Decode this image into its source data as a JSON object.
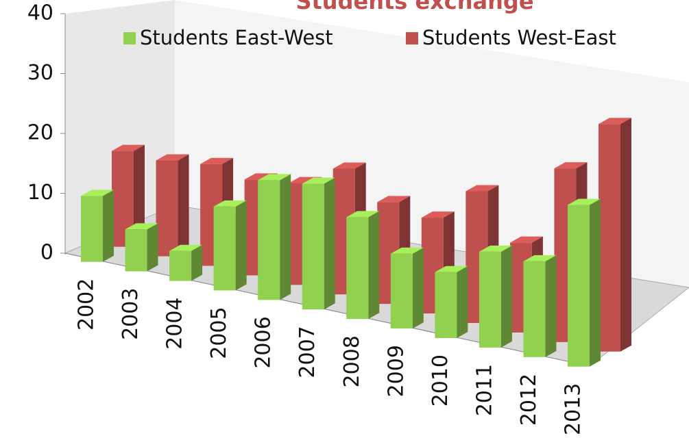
{
  "chart_data": {
    "type": "bar3d",
    "title": "Students exchange",
    "categories": [
      "2002",
      "2003",
      "2004",
      "2005",
      "2006",
      "2007",
      "2008",
      "2009",
      "2010",
      "2011",
      "2012",
      "2013"
    ],
    "series": [
      {
        "name": "Students East-West",
        "color": "#92d050",
        "values": [
          11,
          7,
          5,
          14,
          20,
          21,
          17,
          12.5,
          11,
          16,
          16,
          27
        ]
      },
      {
        "name": "Students West-East",
        "color": "#c0504d",
        "values": [
          16,
          16,
          17,
          16,
          17,
          21,
          17,
          16,
          22,
          15,
          29,
          38
        ]
      }
    ],
    "ylim": [
      0,
      40
    ],
    "yticks": [
      0,
      10,
      20,
      30,
      40
    ],
    "legend": "top"
  }
}
